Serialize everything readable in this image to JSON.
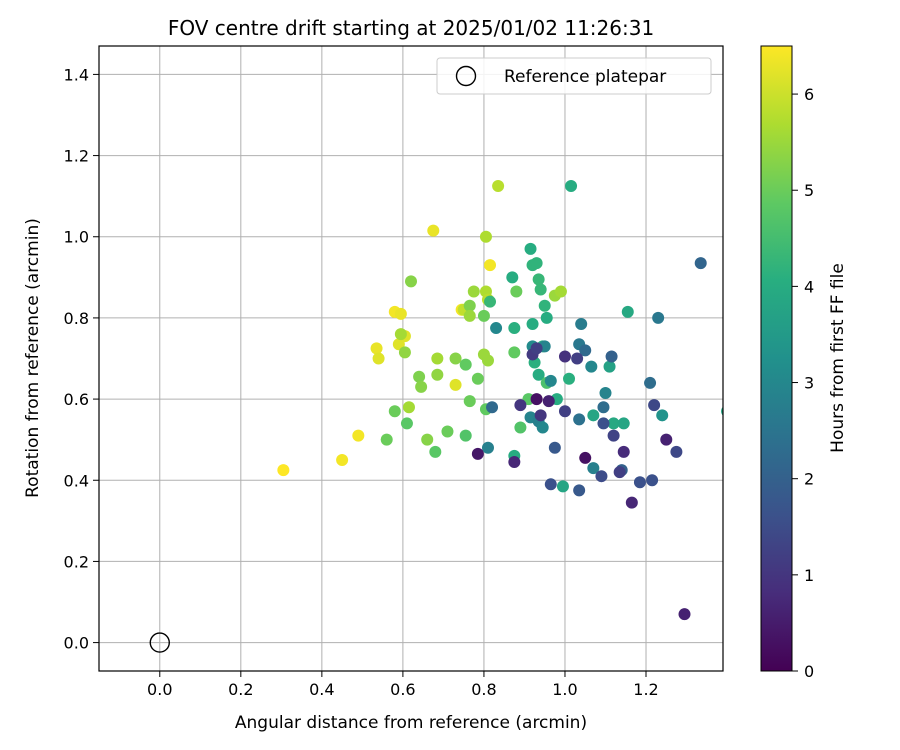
{
  "chart_data": {
    "type": "scatter",
    "title": "FOV centre drift starting at 2025/01/02 11:26:31",
    "xlabel": "Angular distance from reference (arcmin)",
    "ylabel": "Rotation from reference (arcmin)",
    "xlim": [
      -0.15,
      1.39
    ],
    "ylim": [
      -0.07,
      1.47
    ],
    "x_ticks": [
      "0.0",
      "0.2",
      "0.4",
      "0.6",
      "0.8",
      "1.0",
      "1.2"
    ],
    "y_ticks": [
      "0.0",
      "0.2",
      "0.4",
      "0.6",
      "0.8",
      "1.0",
      "1.2",
      "1.4"
    ],
    "grid": true,
    "legend": {
      "position": "top-right",
      "entries": [
        "Reference platepar"
      ]
    },
    "reference_point": {
      "name": "Reference platepar",
      "x": 0.0,
      "y": 0.0
    },
    "colorbar": {
      "label": "Hours from first FF file",
      "range": [
        0,
        6.5
      ],
      "ticks": [
        "0",
        "1",
        "2",
        "3",
        "4",
        "5",
        "6"
      ],
      "colormap": "viridis"
    },
    "points_columns": [
      "x",
      "y",
      "hours"
    ],
    "points": [
      [
        0.305,
        0.425,
        6.5
      ],
      [
        0.45,
        0.45,
        6.4
      ],
      [
        0.49,
        0.51,
        6.4
      ],
      [
        0.535,
        0.725,
        6.3
      ],
      [
        0.54,
        0.7,
        6.2
      ],
      [
        0.58,
        0.815,
        6.4
      ],
      [
        0.59,
        0.735,
        6.2
      ],
      [
        0.595,
        0.81,
        6.3
      ],
      [
        0.605,
        0.755,
        6.2
      ],
      [
        0.675,
        1.015,
        6.3
      ],
      [
        0.73,
        0.635,
        6.2
      ],
      [
        0.745,
        0.82,
        6.4
      ],
      [
        0.815,
        0.93,
        6.4
      ],
      [
        0.835,
        1.125,
        5.8
      ],
      [
        0.75,
        0.82,
        5.9
      ],
      [
        0.805,
        1.0,
        5.7
      ],
      [
        0.595,
        0.76,
        5.6
      ],
      [
        0.605,
        0.715,
        5.4
      ],
      [
        0.615,
        0.58,
        5.6
      ],
      [
        0.62,
        0.89,
        5.3
      ],
      [
        0.64,
        0.655,
        5.2
      ],
      [
        0.645,
        0.63,
        5.3
      ],
      [
        0.66,
        0.5,
        5.3
      ],
      [
        0.685,
        0.66,
        5.4
      ],
      [
        0.685,
        0.7,
        5.6
      ],
      [
        0.73,
        0.7,
        5.3
      ],
      [
        0.765,
        0.83,
        5.2
      ],
      [
        0.765,
        0.805,
        5.5
      ],
      [
        0.775,
        0.865,
        5.5
      ],
      [
        0.8,
        0.71,
        5.5
      ],
      [
        0.805,
        0.865,
        5.7
      ],
      [
        0.81,
        0.695,
        5.5
      ],
      [
        0.81,
        0.845,
        5.8
      ],
      [
        0.975,
        0.855,
        5.5
      ],
      [
        0.99,
        0.865,
        5.6
      ],
      [
        0.56,
        0.5,
        5.0
      ],
      [
        0.58,
        0.57,
        5.0
      ],
      [
        0.61,
        0.54,
        4.8
      ],
      [
        0.68,
        0.47,
        4.8
      ],
      [
        0.71,
        0.52,
        5.0
      ],
      [
        0.755,
        0.51,
        4.7
      ],
      [
        0.755,
        0.685,
        4.9
      ],
      [
        0.765,
        0.595,
        5.0
      ],
      [
        0.785,
        0.65,
        5.0
      ],
      [
        0.8,
        0.805,
        5.0
      ],
      [
        0.805,
        0.575,
        4.9
      ],
      [
        0.88,
        0.865,
        5.0
      ],
      [
        0.875,
        0.715,
        4.9
      ],
      [
        0.89,
        0.53,
        4.7
      ],
      [
        0.91,
        0.6,
        4.8
      ],
      [
        0.815,
        0.84,
        4.3
      ],
      [
        0.87,
        0.9,
        4.0
      ],
      [
        0.875,
        0.775,
        4.1
      ],
      [
        0.875,
        0.46,
        4.0
      ],
      [
        0.915,
        0.97,
        4.0
      ],
      [
        0.92,
        0.93,
        4.2
      ],
      [
        0.92,
        0.785,
        4.0
      ],
      [
        0.925,
        0.69,
        4.1
      ],
      [
        0.93,
        0.935,
        4.2
      ],
      [
        0.935,
        0.895,
        4.3
      ],
      [
        0.935,
        0.66,
        4.0
      ],
      [
        0.94,
        0.87,
        4.3
      ],
      [
        0.945,
        0.73,
        4.1
      ],
      [
        0.95,
        0.83,
        4.2
      ],
      [
        0.955,
        0.8,
        4.0
      ],
      [
        0.955,
        0.64,
        4.6
      ],
      [
        0.98,
        0.6,
        4.0
      ],
      [
        0.995,
        0.385,
        3.8
      ],
      [
        1.01,
        0.65,
        4.1
      ],
      [
        1.015,
        1.125,
        4.0
      ],
      [
        1.07,
        0.56,
        3.8
      ],
      [
        1.11,
        0.68,
        3.7
      ],
      [
        1.12,
        0.54,
        3.9
      ],
      [
        1.145,
        0.54,
        3.8
      ],
      [
        1.155,
        0.815,
        3.9
      ],
      [
        1.24,
        0.56,
        3.3
      ],
      [
        1.4,
        0.57,
        3.8
      ],
      [
        0.83,
        0.775,
        3.0
      ],
      [
        0.81,
        0.48,
        2.8
      ],
      [
        0.915,
        0.555,
        2.9
      ],
      [
        0.92,
        0.73,
        3.1
      ],
      [
        0.935,
        0.545,
        2.8
      ],
      [
        0.945,
        0.53,
        3.0
      ],
      [
        0.95,
        0.73,
        2.9
      ],
      [
        0.965,
        0.645,
        3.0
      ],
      [
        1.035,
        0.735,
        2.6
      ],
      [
        1.04,
        0.785,
        2.7
      ],
      [
        1.065,
        0.68,
        3.0
      ],
      [
        1.07,
        0.43,
        2.8
      ],
      [
        1.1,
        0.615,
        2.9
      ],
      [
        1.23,
        0.8,
        2.6
      ],
      [
        1.21,
        0.64,
        2.3
      ],
      [
        1.095,
        0.58,
        2.3
      ],
      [
        1.05,
        0.72,
        2.2
      ],
      [
        1.035,
        0.55,
        2.4
      ],
      [
        1.035,
        0.375,
        1.8
      ],
      [
        1.115,
        0.705,
        2.0
      ],
      [
        1.335,
        0.935,
        2.1
      ],
      [
        1.14,
        0.425,
        2.0
      ],
      [
        0.82,
        0.58,
        2.2
      ],
      [
        0.975,
        0.48,
        1.8
      ],
      [
        0.965,
        0.39,
        1.6
      ],
      [
        1.09,
        0.41,
        1.5
      ],
      [
        1.095,
        0.54,
        1.6
      ],
      [
        1.185,
        0.395,
        1.6
      ],
      [
        1.215,
        0.4,
        1.6
      ],
      [
        1.22,
        0.585,
        1.4
      ],
      [
        1.275,
        0.47,
        1.4
      ],
      [
        0.89,
        0.585,
        1.0
      ],
      [
        0.92,
        0.71,
        1.1
      ],
      [
        0.93,
        0.725,
        1.2
      ],
      [
        0.94,
        0.56,
        1.0
      ],
      [
        1.0,
        0.57,
        1.2
      ],
      [
        1.03,
        0.7,
        1.2
      ],
      [
        1.12,
        0.51,
        1.3
      ],
      [
        1.135,
        0.42,
        1.2
      ],
      [
        0.785,
        0.465,
        0.4
      ],
      [
        0.875,
        0.445,
        0.7
      ],
      [
        0.93,
        0.6,
        0.3
      ],
      [
        0.96,
        0.595,
        0.6
      ],
      [
        1.0,
        0.705,
        0.9
      ],
      [
        1.05,
        0.455,
        0.3
      ],
      [
        1.145,
        0.47,
        0.8
      ],
      [
        1.165,
        0.345,
        0.7
      ],
      [
        1.25,
        0.5,
        0.6
      ],
      [
        1.295,
        0.07,
        0.6
      ]
    ]
  }
}
